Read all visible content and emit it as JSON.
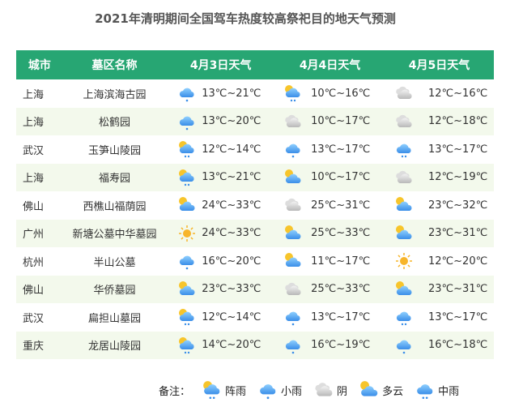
{
  "title": "2021年清明期间全国驾车热度较高祭祀目的地天气预测",
  "colors": {
    "header": "#27a673",
    "alt_row": "#f3f9ec"
  },
  "headers": [
    "城市",
    "墓区名称",
    "4月3日天气",
    "4月4日天气",
    "4月5日天气"
  ],
  "rows": [
    {
      "city": "上海",
      "name": "上海滨海古园",
      "days": [
        {
          "icon": "light-rain",
          "temp": "13℃~21℃"
        },
        {
          "icon": "shower",
          "temp": "10℃~16℃"
        },
        {
          "icon": "overcast",
          "temp": "12℃~16℃"
        }
      ]
    },
    {
      "city": "上海",
      "name": "松鹤园",
      "days": [
        {
          "icon": "light-rain",
          "temp": "13℃~20℃"
        },
        {
          "icon": "overcast",
          "temp": "10℃~17℃"
        },
        {
          "icon": "overcast",
          "temp": "12℃~18℃"
        }
      ]
    },
    {
      "city": "武汉",
      "name": "玉笋山陵园",
      "days": [
        {
          "icon": "shower",
          "temp": "12℃~14℃"
        },
        {
          "icon": "light-rain",
          "temp": "13℃~17℃"
        },
        {
          "icon": "moderate-rain",
          "temp": "13℃~17℃"
        }
      ]
    },
    {
      "city": "上海",
      "name": "福寿园",
      "days": [
        {
          "icon": "shower",
          "temp": "13℃~21℃"
        },
        {
          "icon": "partly-cloudy",
          "temp": "10℃~17℃"
        },
        {
          "icon": "overcast",
          "temp": "12℃~19℃"
        }
      ]
    },
    {
      "city": "佛山",
      "name": "西樵山福荫园",
      "days": [
        {
          "icon": "partly-cloudy",
          "temp": "24℃~33℃"
        },
        {
          "icon": "overcast",
          "temp": "25℃~31℃"
        },
        {
          "icon": "partly-cloudy",
          "temp": "23℃~32℃"
        }
      ]
    },
    {
      "city": "广州",
      "name": "新塘公墓中华墓园",
      "days": [
        {
          "icon": "sunny",
          "temp": "24℃~33℃"
        },
        {
          "icon": "partly-cloudy",
          "temp": "25℃~33℃"
        },
        {
          "icon": "partly-cloudy",
          "temp": "23℃~31℃"
        }
      ]
    },
    {
      "city": "杭州",
      "name": "半山公墓",
      "days": [
        {
          "icon": "light-rain",
          "temp": "16℃~20℃"
        },
        {
          "icon": "partly-cloudy",
          "temp": "11℃~17℃"
        },
        {
          "icon": "sunny",
          "temp": "12℃~20℃"
        }
      ]
    },
    {
      "city": "佛山",
      "name": "华侨墓园",
      "days": [
        {
          "icon": "partly-cloudy",
          "temp": "23℃~33℃"
        },
        {
          "icon": "overcast",
          "temp": "25℃~33℃"
        },
        {
          "icon": "partly-cloudy",
          "temp": "23℃~31℃"
        }
      ]
    },
    {
      "city": "武汉",
      "name": "扁担山墓园",
      "days": [
        {
          "icon": "shower",
          "temp": "12℃~14℃"
        },
        {
          "icon": "light-rain",
          "temp": "13℃~17℃"
        },
        {
          "icon": "moderate-rain",
          "temp": "13℃~17℃"
        }
      ]
    },
    {
      "city": "重庆",
      "name": "龙居山陵园",
      "days": [
        {
          "icon": "shower",
          "temp": "14℃~20℃"
        },
        {
          "icon": "light-rain",
          "temp": "16℃~19℃"
        },
        {
          "icon": "light-rain",
          "temp": "16℃~18℃"
        }
      ]
    }
  ],
  "legend": {
    "label": "备注：",
    "items": [
      {
        "icon": "shower",
        "label": "阵雨"
      },
      {
        "icon": "light-rain",
        "label": "小雨"
      },
      {
        "icon": "overcast",
        "label": "阴"
      },
      {
        "icon": "partly-cloudy",
        "label": "多云"
      },
      {
        "icon": "moderate-rain",
        "label": "中雨"
      }
    ]
  }
}
